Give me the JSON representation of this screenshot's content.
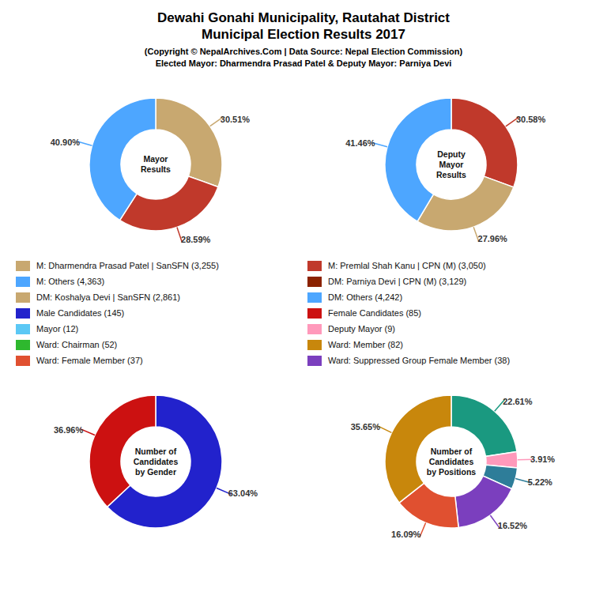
{
  "title": [
    "Dewahi Gonahi Municipality, Rautahat District",
    "Municipal Election Results 2017"
  ],
  "subtitle": [
    "(Copyright © NepalArchives.Com | Data Source: Nepal Election Commission)",
    "Elected Mayor: Dharmendra Prasad Patel & Deputy Mayor: Parniya Devi"
  ],
  "legend_items": [
    {
      "name": "M: Dharmendra Prasad Patel | SanSFN (3,255)",
      "color": "#c8a870"
    },
    {
      "name": "M: Premlal Shah Kanu | CPN (M) (3,050)",
      "color": "#c0392b"
    },
    {
      "name": "M: Others (4,363)",
      "color": "#4da6ff"
    },
    {
      "name": "DM: Parniya Devi | CPN (M) (3,129)",
      "color": "#8b2200"
    },
    {
      "name": "DM: Koshalya Devi | SanSFN (2,861)",
      "color": "#c8a870"
    },
    {
      "name": "DM: Others (4,242)",
      "color": "#4da6ff"
    },
    {
      "name": "Male Candidates (145)",
      "color": "#2222cc"
    },
    {
      "name": "Female Candidates (85)",
      "color": "#cc1111"
    },
    {
      "name": "Mayor (12)",
      "color": "#5bc8f5"
    },
    {
      "name": "Deputy Mayor (9)",
      "color": "#ff99bb"
    },
    {
      "name": "Ward: Chairman (52)",
      "color": "#2eb82e"
    },
    {
      "name": "Ward: Member (82)",
      "color": "#c8870c"
    },
    {
      "name": "Ward: Female Member (37)",
      "color": "#e05030"
    },
    {
      "name": "Ward: Suppressed Group Female Member (38)",
      "color": "#7b3fbe"
    }
  ],
  "chart_data": [
    {
      "type": "pie",
      "title": "Mayor\nResults",
      "values": [
        30.51,
        28.59,
        40.9
      ],
      "value_labels": [
        "30.51%",
        "28.59%",
        "40.90%"
      ],
      "colors": [
        "#c8a870",
        "#c0392b",
        "#4da6ff"
      ],
      "data_labels": true
    },
    {
      "type": "pie",
      "title": "Deputy\nMayor\nResults",
      "values": [
        30.58,
        27.96,
        41.46
      ],
      "value_labels": [
        "30.58%",
        "27.96%",
        "41.46%"
      ],
      "colors": [
        "#c0392b",
        "#c8a870",
        "#4da6ff"
      ],
      "data_labels": true
    },
    {
      "type": "pie",
      "title": "Number of\nCandidates\nby Gender",
      "values": [
        63.04,
        36.96
      ],
      "value_labels": [
        "63.04%",
        "36.96%"
      ],
      "colors": [
        "#2222cc",
        "#cc1111"
      ],
      "data_labels": true
    },
    {
      "type": "pie",
      "title": "Number of\nCandidates\nby Positions",
      "values": [
        22.61,
        3.91,
        5.22,
        16.52,
        16.09,
        35.65
      ],
      "value_labels": [
        "22.61%",
        "3.91%",
        "5.22%",
        "16.52%",
        "16.09%",
        "35.65%"
      ],
      "colors": [
        "#1a9980",
        "#ff99bb",
        "#2e7d99",
        "#7b3fbe",
        "#e05030",
        "#c8870c"
      ],
      "data_labels": true
    }
  ]
}
